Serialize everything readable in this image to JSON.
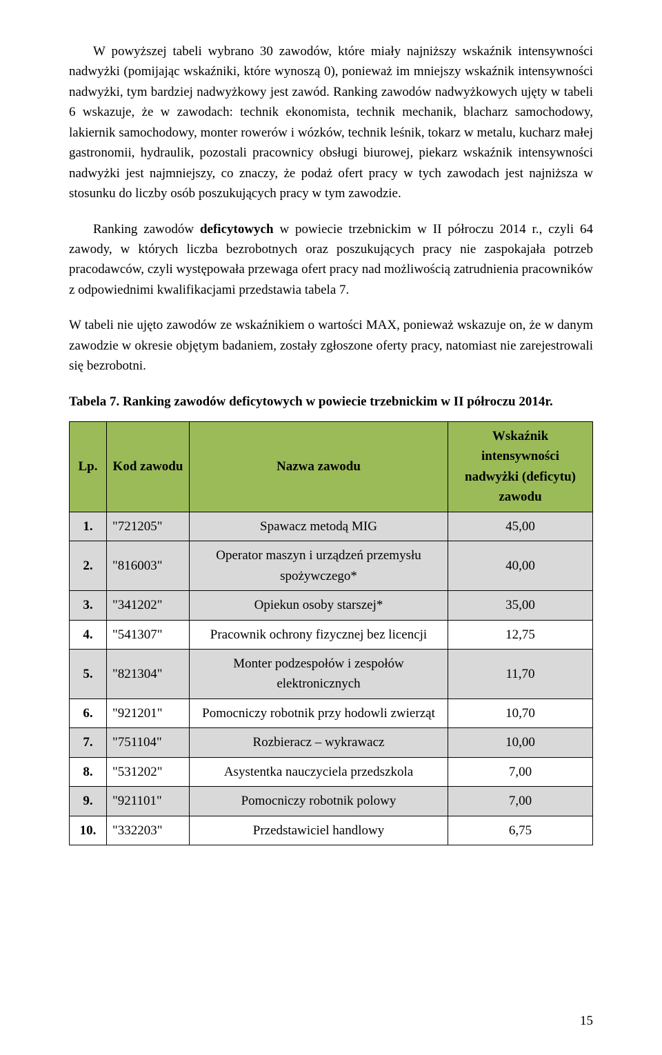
{
  "paragraphs": {
    "p1": "W powyższej tabeli wybrano 30 zawodów, które miały najniższy wskaźnik intensywności nadwyżki (pomijając wskaźniki, które wynoszą 0), ponieważ im mniejszy wskaźnik intensywności nadwyżki, tym bardziej nadwyżkowy jest zawód. Ranking zawodów nadwyżkowych ujęty w tabeli 6 wskazuje, że w zawodach: technik ekonomista, technik mechanik, blacharz samochodowy, lakiernik samochodowy, monter rowerów i wózków, technik leśnik, tokarz w metalu, kucharz małej gastronomii, hydraulik, pozostali pracownicy obsługi biurowej, piekarz wskaźnik intensywności nadwyżki jest najmniejszy, co znaczy, że podaż ofert pracy w tych zawodach jest najniższa w stosunku do liczby osób poszukujących pracy w tym zawodzie.",
    "p2_a": "Ranking zawodów ",
    "p2_b": "deficytowych",
    "p2_c": " w powiecie trzebnickim w II półroczu 2014 r., czyli 64 zawody, w których liczba bezrobotnych oraz poszukujących pracy nie zaspokajała potrzeb pracodawców, czyli występowała przewaga ofert pracy nad możliwością zatrudnienia pracowników z odpowiednimi kwalifikacjami przedstawia tabela 7.",
    "p3": "W tabeli nie ujęto zawodów ze wskaźnikiem o wartości MAX, ponieważ wskazuje on, że w danym zawodzie w okresie objętym badaniem, zostały zgłoszone oferty pracy, natomiast nie zarejestrowali się bezrobotni."
  },
  "table": {
    "caption": "Tabela 7. Ranking zawodów deficytowych w powiecie trzebnickim w II półroczu 2014r.",
    "header_bg": "#9bbb59",
    "row_alt_bg": "#d9d9d9",
    "row_bg": "#ffffff",
    "headers": {
      "lp": "Lp.",
      "kod": "Kod zawodu",
      "nazwa": "Nazwa zawodu",
      "wsk": "Wskaźnik intensywności nadwyżki (deficytu) zawodu"
    },
    "rows": [
      {
        "lp": "1.",
        "kod": "\"721205\"",
        "nazwa": "Spawacz metodą MIG",
        "wsk": "45,00",
        "shaded": true
      },
      {
        "lp": "2.",
        "kod": "\"816003\"",
        "nazwa": "Operator maszyn i urządzeń przemysłu spożywczego*",
        "wsk": "40,00",
        "shaded": true
      },
      {
        "lp": "3.",
        "kod": "\"341202\"",
        "nazwa": "Opiekun osoby starszej*",
        "wsk": "35,00",
        "shaded": true
      },
      {
        "lp": "4.",
        "kod": "\"541307\"",
        "nazwa": "Pracownik ochrony fizycznej bez licencji",
        "wsk": "12,75",
        "shaded": false
      },
      {
        "lp": "5.",
        "kod": "\"821304\"",
        "nazwa": "Monter podzespołów i zespołów elektronicznych",
        "wsk": "11,70",
        "shaded": true
      },
      {
        "lp": "6.",
        "kod": "\"921201\"",
        "nazwa": "Pomocniczy robotnik przy hodowli zwierząt",
        "wsk": "10,70",
        "shaded": false
      },
      {
        "lp": "7.",
        "kod": "\"751104\"",
        "nazwa": "Rozbieracz – wykrawacz",
        "wsk": "10,00",
        "shaded": true
      },
      {
        "lp": "8.",
        "kod": "\"531202\"",
        "nazwa": "Asystentka nauczyciela przedszkola",
        "wsk": "7,00",
        "shaded": false
      },
      {
        "lp": "9.",
        "kod": "\"921101\"",
        "nazwa": "Pomocniczy robotnik polowy",
        "wsk": "7,00",
        "shaded": true
      },
      {
        "lp": "10.",
        "kod": "\"332203\"",
        "nazwa": "Przedstawiciel handlowy",
        "wsk": "6,75",
        "shaded": false
      }
    ]
  },
  "page_number": "15"
}
